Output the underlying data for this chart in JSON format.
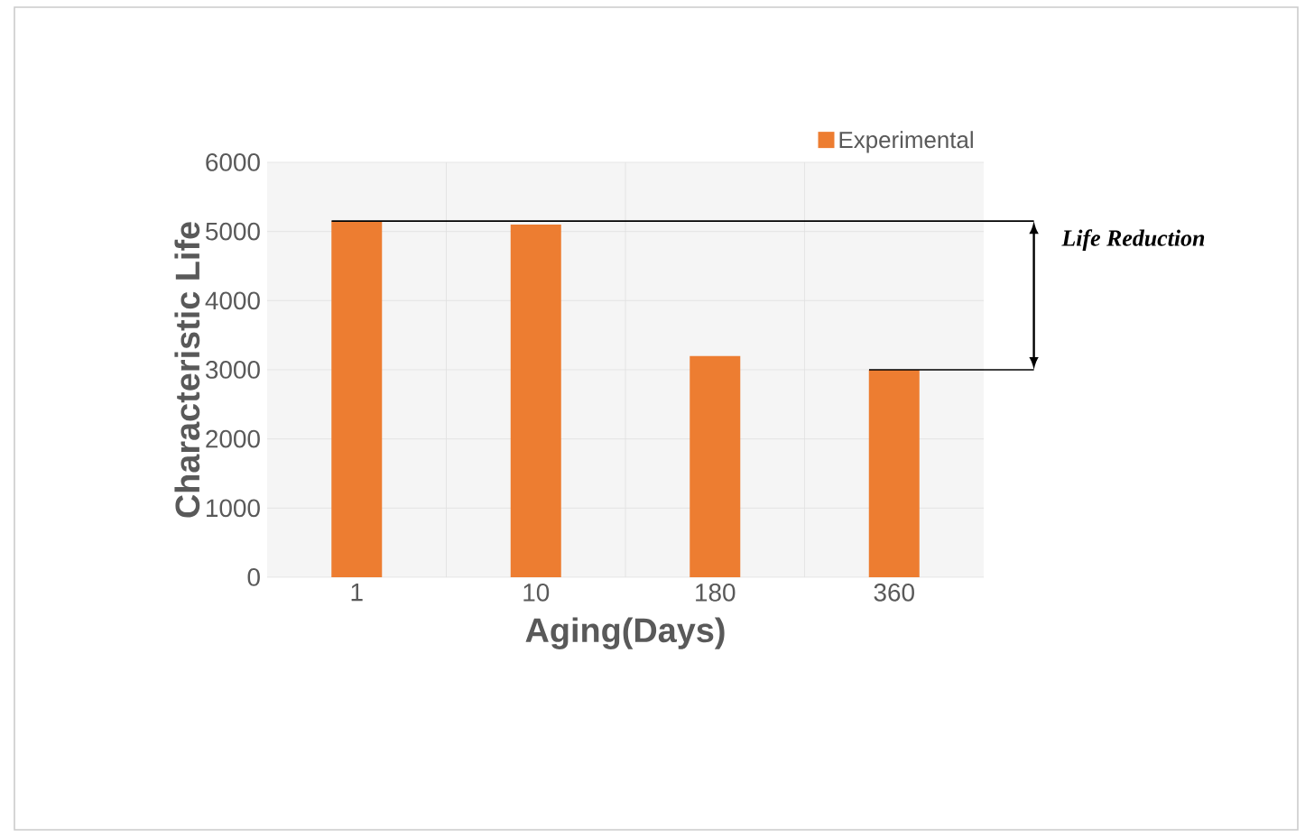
{
  "chart_data": {
    "type": "bar",
    "categories": [
      "1",
      "10",
      "180",
      "360"
    ],
    "series": [
      {
        "name": "Experimental",
        "color": "#ed7d31",
        "values": [
          5150,
          5100,
          3200,
          3000
        ]
      }
    ],
    "xlabel": "Aging(Days)",
    "ylabel": "Characteristic Life",
    "ylim": [
      0,
      6000
    ],
    "yticks": [
      0,
      1000,
      2000,
      3000,
      4000,
      5000,
      6000
    ],
    "ref_lines": [
      {
        "axis": "y",
        "value": 5150,
        "color": "#000000"
      },
      {
        "axis": "y",
        "value": 3000,
        "color": "#000000"
      }
    ],
    "grid": true,
    "legend": "top right",
    "annotations": [
      "Life Reduction"
    ]
  }
}
